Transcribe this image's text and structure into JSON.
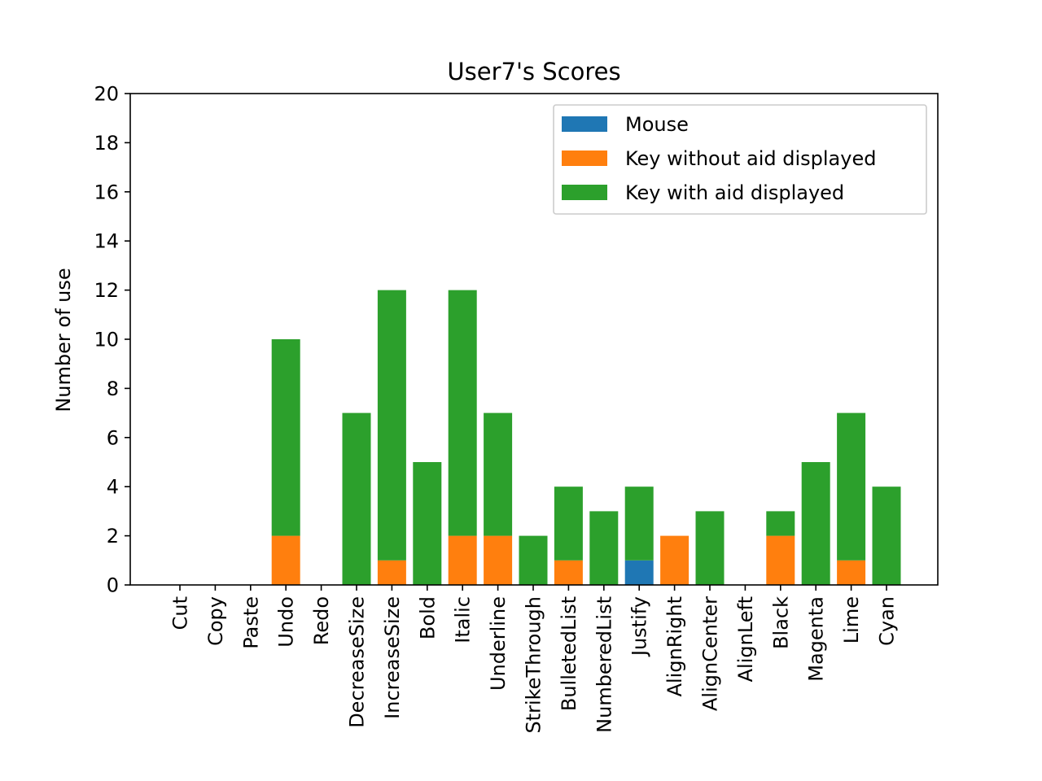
{
  "chart_data": {
    "type": "bar",
    "stacked": true,
    "title": "User7's Scores",
    "xlabel": "",
    "ylabel": "Number of use",
    "ylim": [
      0,
      20
    ],
    "yticks": [
      "0",
      "2",
      "4",
      "6",
      "8",
      "10",
      "12",
      "14",
      "16",
      "18",
      "20"
    ],
    "grid": false,
    "legend_position": "upper right",
    "categories": [
      "Cut",
      "Copy",
      "Paste",
      "Undo",
      "Redo",
      "DecreaseSize",
      "IncreaseSize",
      "Bold",
      "Italic",
      "Underline",
      "StrikeThrough",
      "BulletedList",
      "NumberedList",
      "Justify",
      "AlignRight",
      "AlignCenter",
      "AlignLeft",
      "Black",
      "Magenta",
      "Lime",
      "Cyan"
    ],
    "series": [
      {
        "name": "Mouse",
        "color": "#1f77b4",
        "values": [
          0,
          0,
          0,
          0,
          0,
          0,
          0,
          0,
          0,
          0,
          0,
          0,
          0,
          1,
          0,
          0,
          0,
          0,
          0,
          0,
          0
        ]
      },
      {
        "name": "Key without aid displayed",
        "color": "#ff7f0e",
        "values": [
          0,
          0,
          0,
          2,
          0,
          0,
          1,
          0,
          2,
          2,
          0,
          1,
          0,
          0,
          2,
          0,
          0,
          2,
          0,
          1,
          0
        ]
      },
      {
        "name": "Key with aid displayed",
        "color": "#2ca02c",
        "values": [
          0,
          0,
          0,
          8,
          0,
          7,
          11,
          5,
          10,
          5,
          2,
          3,
          3,
          3,
          0,
          3,
          0,
          1,
          5,
          6,
          4
        ]
      }
    ]
  }
}
